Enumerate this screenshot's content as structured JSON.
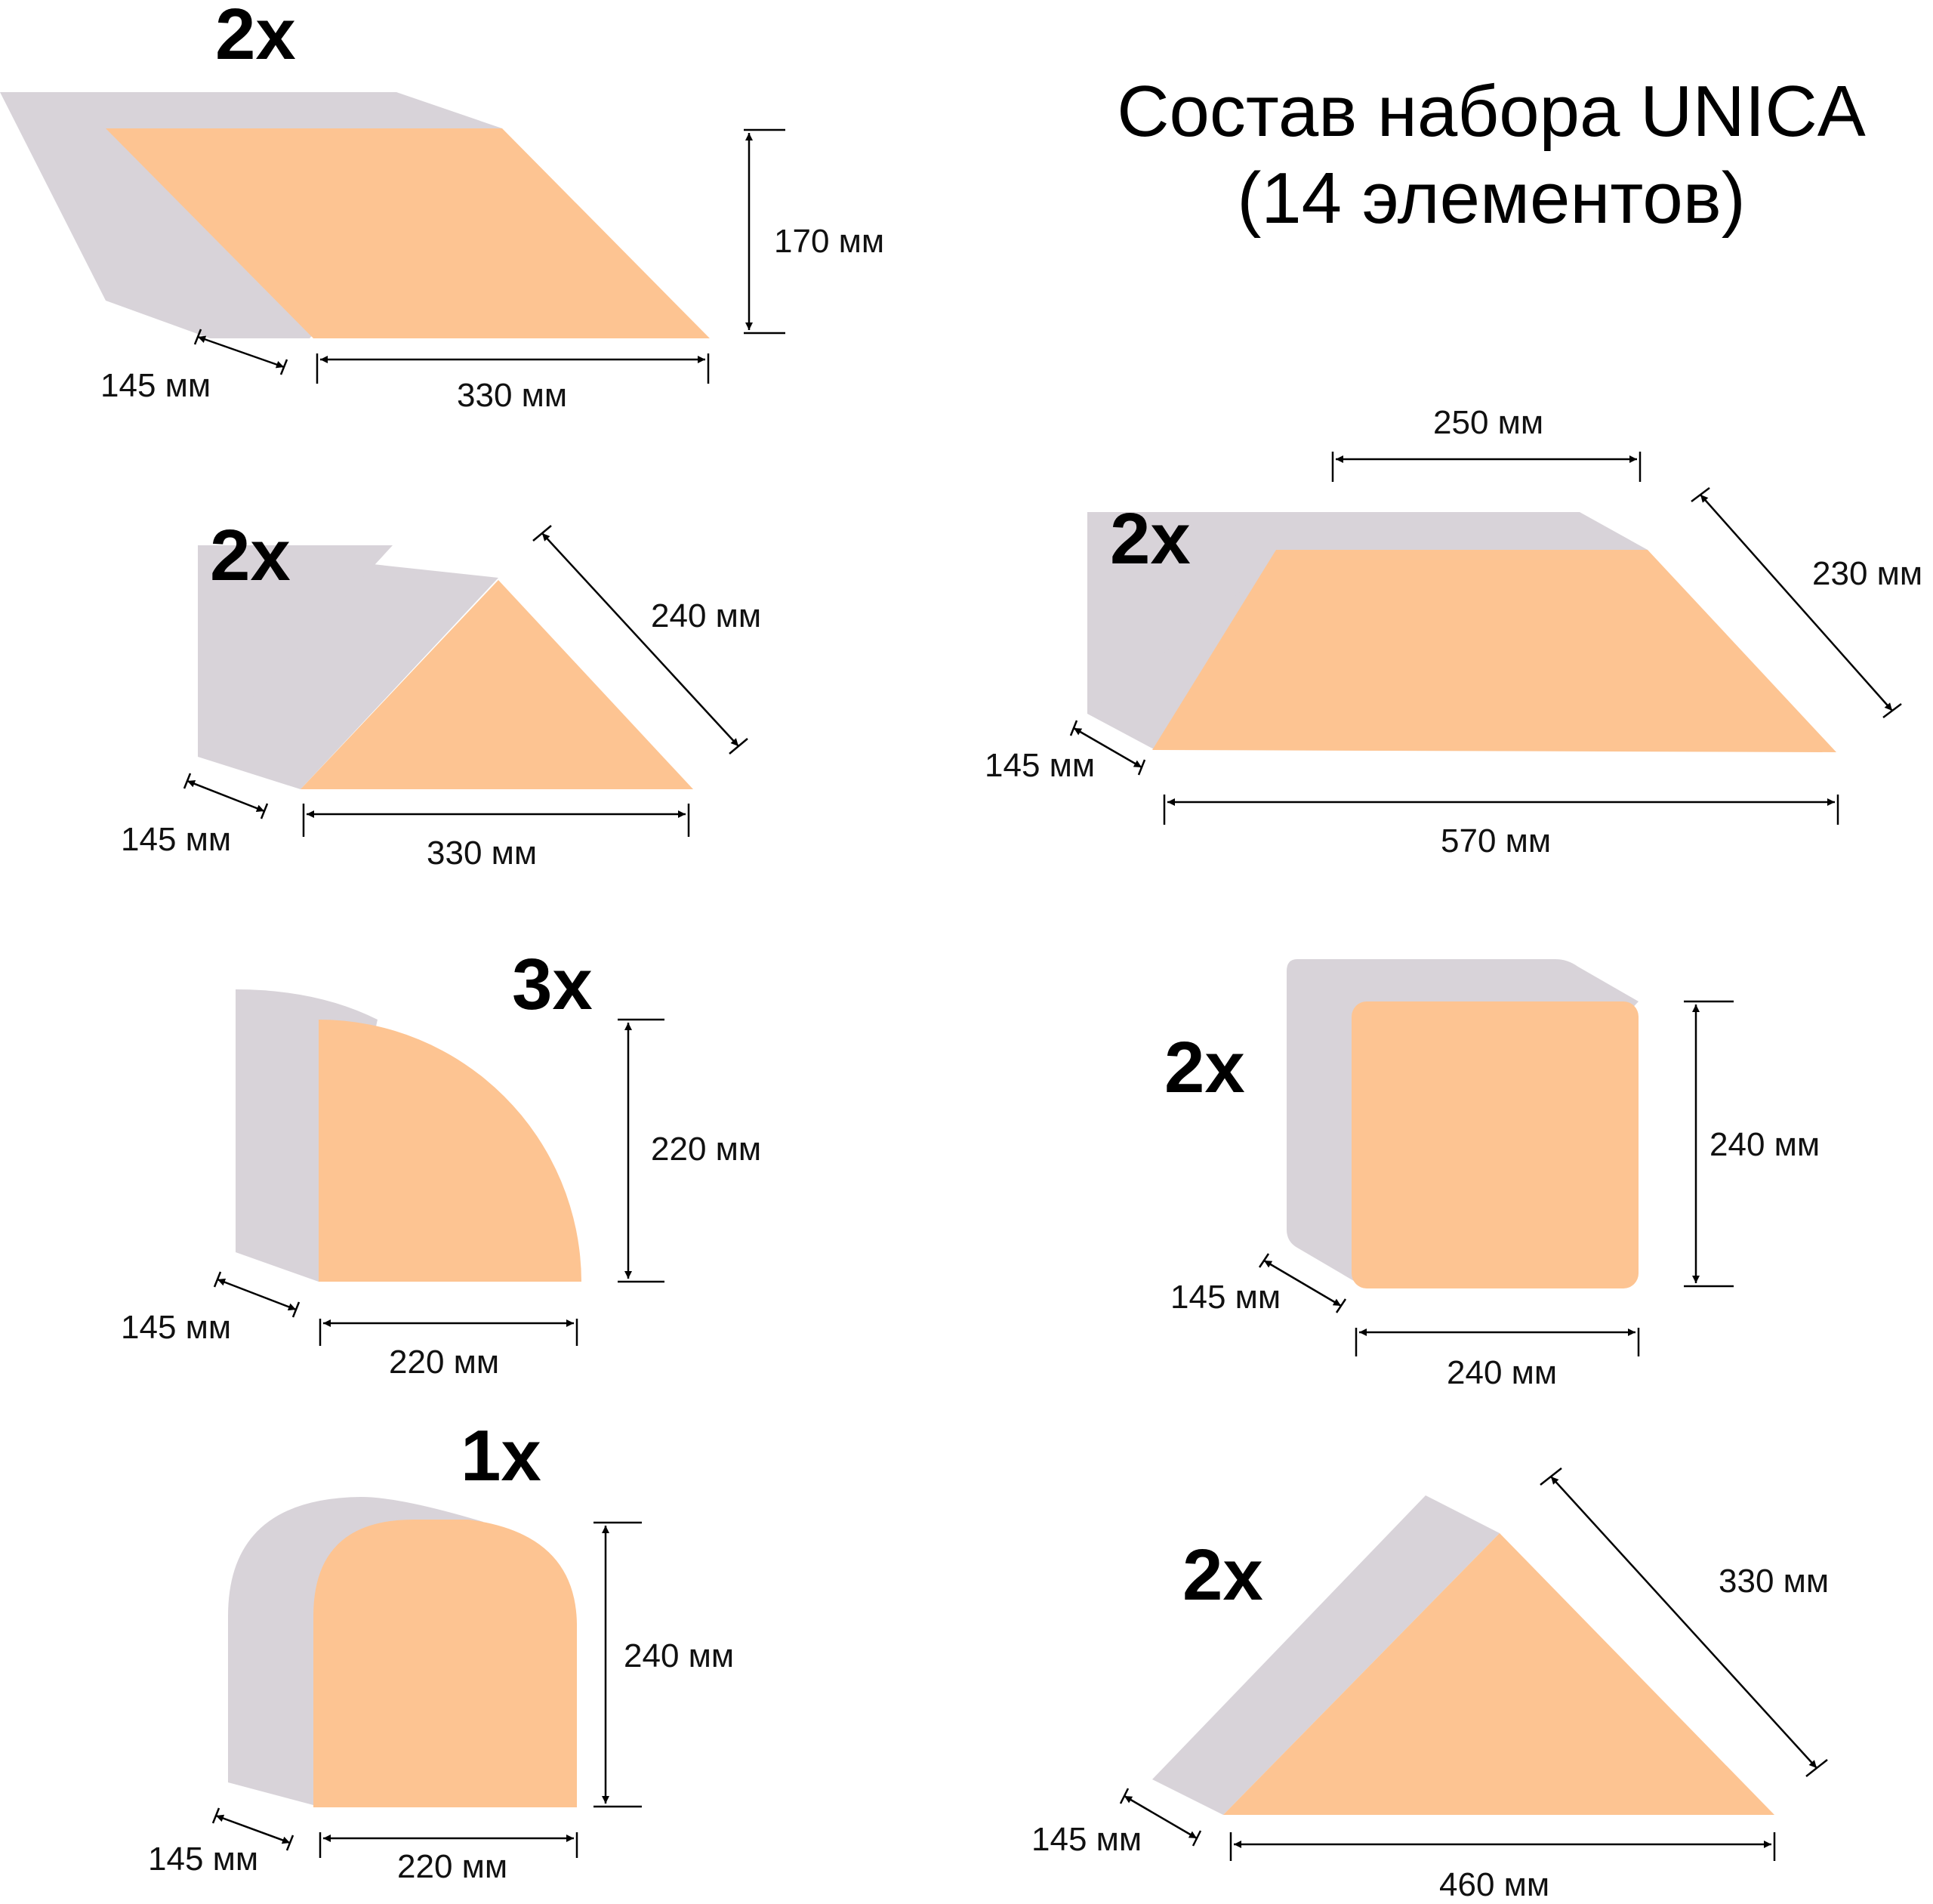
{
  "title": {
    "line1": "Состав набора UNICA",
    "line2": "(14 элементов)"
  },
  "colors": {
    "face": "#fdc492",
    "side": "#d8d3d9",
    "ink": "#000000"
  },
  "pieces": [
    {
      "id": "parallelogram",
      "qty": "2x",
      "dims": {
        "depth": "145 мм",
        "width": "330 мм",
        "height": "170 мм"
      }
    },
    {
      "id": "small-triangle",
      "qty": "2x",
      "dims": {
        "depth": "145 мм",
        "width": "330 мм",
        "slant": "240 мм"
      }
    },
    {
      "id": "quarter-circle",
      "qty": "3x",
      "dims": {
        "depth": "145 мм",
        "width": "220 мм",
        "height": "220 мм"
      }
    },
    {
      "id": "arch",
      "qty": "1x",
      "dims": {
        "depth": "145 мм",
        "width": "220 мм",
        "height": "240 мм"
      }
    },
    {
      "id": "trapezoid",
      "qty": "2x",
      "dims": {
        "depth": "145 мм",
        "top": "250 мм",
        "bottom": "570 мм",
        "slant": "230 мм"
      }
    },
    {
      "id": "square",
      "qty": "2x",
      "dims": {
        "depth": "145 мм",
        "width": "240 мм",
        "height": "240 мм"
      }
    },
    {
      "id": "large-triangle",
      "qty": "2x",
      "dims": {
        "depth": "145 мм",
        "width": "460 мм",
        "slant": "330 мм"
      }
    }
  ]
}
